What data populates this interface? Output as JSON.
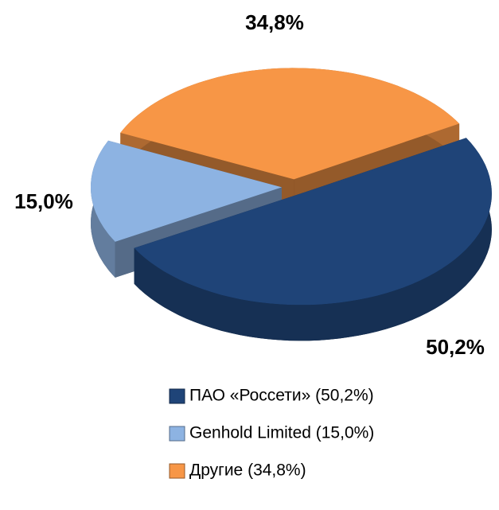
{
  "chart_data": {
    "type": "pie",
    "categories": [
      "ПАО «Россети» (50,2%)",
      "Genhold Limited (15,0%)",
      "Другие (34,8%)"
    ],
    "values": [
      50.2,
      15.0,
      34.8
    ],
    "value_labels": [
      "50,2%",
      "15,0%",
      "34,8%"
    ],
    "colors": [
      "#1f4478",
      "#8db3e2",
      "#f79646"
    ]
  }
}
